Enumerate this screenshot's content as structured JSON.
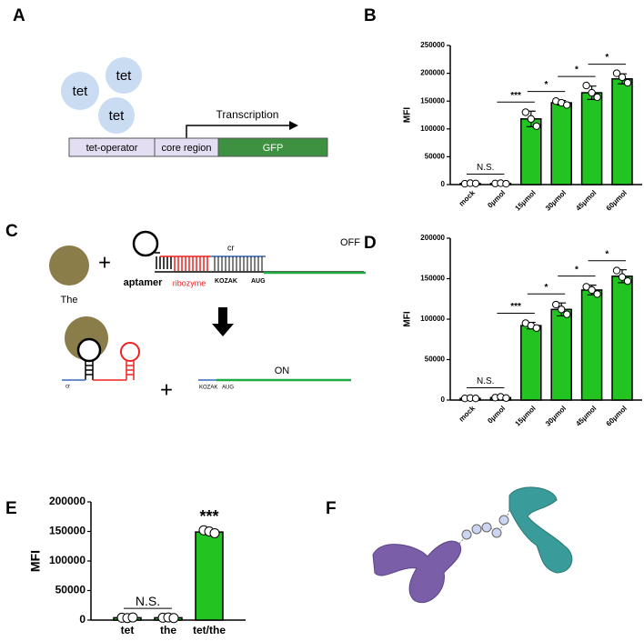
{
  "diagram_a": {
    "label": "A",
    "tets": [
      "tet",
      "tet",
      "tet"
    ],
    "transcription": "Transcription",
    "boxes": [
      "tet-operator",
      "core region",
      "GFP"
    ]
  },
  "diagram_c": {
    "label": "C",
    "ligand": "The",
    "plus_top": "+",
    "aptamer": "aptamer",
    "ribozyme": "ribozyme",
    "cr_top": "cr",
    "kozak_top": "KOZAK",
    "aug_top": "AUG",
    "off": "OFF",
    "on": "ON",
    "plus_bottom": "+",
    "cr_bottom": "cr",
    "kozak_bottom": "KOZAK",
    "aug_bottom": "AUG"
  },
  "panel_f": {
    "label": "F"
  },
  "chart_data": [
    {
      "type": "bar",
      "label": "B",
      "ylabel": "MFI",
      "color": "#22c422",
      "categories": [
        "mock",
        "0μmol",
        "15μmol",
        "30μmol",
        "45μmol",
        "60μmol"
      ],
      "values": [
        2000,
        2000,
        118000,
        147000,
        165000,
        190000
      ],
      "errors": [
        500,
        500,
        14000,
        4000,
        12000,
        9000
      ],
      "points": [
        [
          1500,
          2500,
          2000
        ],
        [
          2000,
          2500,
          1500
        ],
        [
          130000,
          118000,
          105000
        ],
        [
          150000,
          147000,
          143000
        ],
        [
          178000,
          165000,
          157000
        ],
        [
          200000,
          193000,
          183000
        ]
      ],
      "ylim": [
        0,
        250000
      ],
      "yticks": [
        0,
        50000,
        100000,
        150000,
        200000,
        250000
      ],
      "annotations": [
        {
          "between": [
            "mock",
            "0μmol"
          ],
          "text": "N.S."
        },
        {
          "between": [
            "0μmol",
            "15μmol"
          ],
          "text": "***"
        },
        {
          "between": [
            "15μmol",
            "30μmol"
          ],
          "text": "*"
        },
        {
          "between": [
            "30μmol",
            "45μmol"
          ],
          "text": "*"
        },
        {
          "between": [
            "45μmol",
            "60μmol"
          ],
          "text": "*"
        }
      ]
    },
    {
      "type": "bar",
      "label": "D",
      "ylabel": "MFI",
      "color": "#22c422",
      "categories": [
        "mock",
        "0μmol",
        "15μmol",
        "30μmol",
        "45μmol",
        "60μmol"
      ],
      "values": [
        2000,
        3000,
        92000,
        112000,
        136000,
        153000
      ],
      "errors": [
        500,
        800,
        4000,
        8000,
        6000,
        8000
      ],
      "points": [
        [
          2000,
          2500,
          2000
        ],
        [
          3000,
          4000,
          2500
        ],
        [
          95000,
          92000,
          89000
        ],
        [
          118000,
          112000,
          106000
        ],
        [
          140000,
          136000,
          131000
        ],
        [
          160000,
          152000,
          147000
        ]
      ],
      "ylim": [
        0,
        200000
      ],
      "yticks": [
        0,
        50000,
        100000,
        150000,
        200000
      ],
      "annotations": [
        {
          "between": [
            "mock",
            "0μmol"
          ],
          "text": "N.S."
        },
        {
          "between": [
            "0μmol",
            "15μmol"
          ],
          "text": "***"
        },
        {
          "between": [
            "15μmol",
            "30μmol"
          ],
          "text": "*"
        },
        {
          "between": [
            "30μmol",
            "45μmol"
          ],
          "text": "*"
        },
        {
          "between": [
            "45μmol",
            "60μmol"
          ],
          "text": "*"
        }
      ]
    },
    {
      "type": "bar",
      "label": "E",
      "ylabel": "MFI",
      "color": "#22c422",
      "categories": [
        "tet",
        "the",
        "tet/the"
      ],
      "values": [
        4000,
        4000,
        149000
      ],
      "errors": [
        500,
        500,
        3000
      ],
      "points": [
        [
          4000,
          3500,
          4500
        ],
        [
          4000,
          4500,
          3500
        ],
        [
          152000,
          150000,
          147000
        ]
      ],
      "ylim": [
        0,
        200000
      ],
      "yticks": [
        0,
        50000,
        100000,
        150000,
        200000
      ],
      "annotations": [
        {
          "between": [
            "tet",
            "the"
          ],
          "text": "N.S."
        },
        {
          "between": [
            "tet/the"
          ],
          "text": "***"
        }
      ]
    }
  ]
}
